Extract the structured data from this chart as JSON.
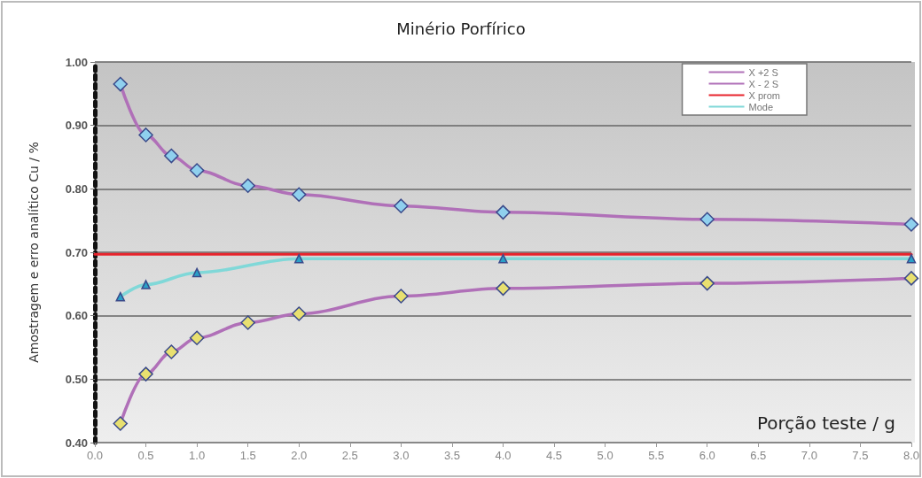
{
  "chart_data": {
    "type": "line",
    "title": "Minério Porfírico",
    "xlabel": "Porção teste / g",
    "ylabel": "Amostragem e erro analítico Cu / %",
    "xlim": [
      0,
      8
    ],
    "ylim": [
      0.4,
      1.0
    ],
    "xticks": [
      {
        "value": 0,
        "label": "0.0"
      },
      {
        "value": 0.5,
        "label": "0.5"
      },
      {
        "value": 1,
        "label": "1.0"
      },
      {
        "value": 1.5,
        "label": "1.5"
      },
      {
        "value": 2,
        "label": "2.0"
      },
      {
        "value": 2.5,
        "label": "2.5"
      },
      {
        "value": 3,
        "label": "3.0"
      },
      {
        "value": 3.5,
        "label": "3.5"
      },
      {
        "value": 4,
        "label": "4.0"
      },
      {
        "value": 4.5,
        "label": "4.5"
      },
      {
        "value": 5,
        "label": "5.0"
      },
      {
        "value": 5.5,
        "label": "5.5"
      },
      {
        "value": 6,
        "label": "6.0"
      },
      {
        "value": 6.5,
        "label": "6.5"
      },
      {
        "value": 7,
        "label": "7.0"
      },
      {
        "value": 7.5,
        "label": "7.5"
      },
      {
        "value": 8,
        "label": "8.0"
      }
    ],
    "yticks": [
      {
        "value": 0.4,
        "label": "0.40"
      },
      {
        "value": 0.5,
        "label": "0.50"
      },
      {
        "value": 0.6,
        "label": "0.60"
      },
      {
        "value": 0.7,
        "label": "0.70"
      },
      {
        "value": 0.8,
        "label": "0.80"
      },
      {
        "value": 0.9,
        "label": "0.90"
      },
      {
        "value": 1.0,
        "label": "1.00"
      }
    ],
    "grid": "y",
    "legend": "top right",
    "line_style": "solid",
    "series": [
      {
        "name": "X +2 S",
        "color": "#b070b8",
        "marker": "diamond",
        "colors": [
          "#8fd0ee",
          "#8fd0ee",
          "#8fd0ee",
          "#8fd0ee",
          "#8fd0ee",
          "#8fd0ee",
          "#8fd0ee",
          "#8fd0ee",
          "#8fd0ee",
          "#8fd0ee"
        ],
        "x": [
          0.25,
          0.5,
          0.75,
          1,
          1.5,
          2,
          3,
          4,
          6,
          8
        ],
        "values": [
          0.965,
          0.885,
          0.852,
          0.829,
          0.805,
          0.791,
          0.773,
          0.763,
          0.752,
          0.744
        ]
      },
      {
        "name": "X - 2 S",
        "color": "#b070b8",
        "marker": "diamond",
        "colors": [
          "#e8e070",
          "#e8e070",
          "#e8e070",
          "#e8e070",
          "#e8e070",
          "#e8e070",
          "#e8e070",
          "#e8e070",
          "#e8e070",
          "#e8e070"
        ],
        "x": [
          0.25,
          0.5,
          0.75,
          1,
          1.5,
          2,
          3,
          4,
          6,
          8
        ],
        "values": [
          0.43,
          0.508,
          0.543,
          0.565,
          0.589,
          0.603,
          0.631,
          0.643,
          0.651,
          0.659
        ]
      },
      {
        "name": "X prom",
        "color": "#e8242c",
        "marker": "none",
        "x": [
          0,
          8
        ],
        "values": [
          0.697,
          0.697
        ]
      },
      {
        "name": "Mode",
        "color": "#80d8d8",
        "marker": "triangle",
        "colors": [
          "#2aa0c8",
          "#2aa0c8",
          "#2aa0c8",
          "#2aa0c8",
          "#2aa0c8",
          "#2aa0c8"
        ],
        "x": [
          0.25,
          0.5,
          1,
          2,
          4,
          8
        ],
        "values": [
          0.63,
          0.649,
          0.668,
          0.69,
          0.69,
          0.69
        ]
      }
    ]
  }
}
